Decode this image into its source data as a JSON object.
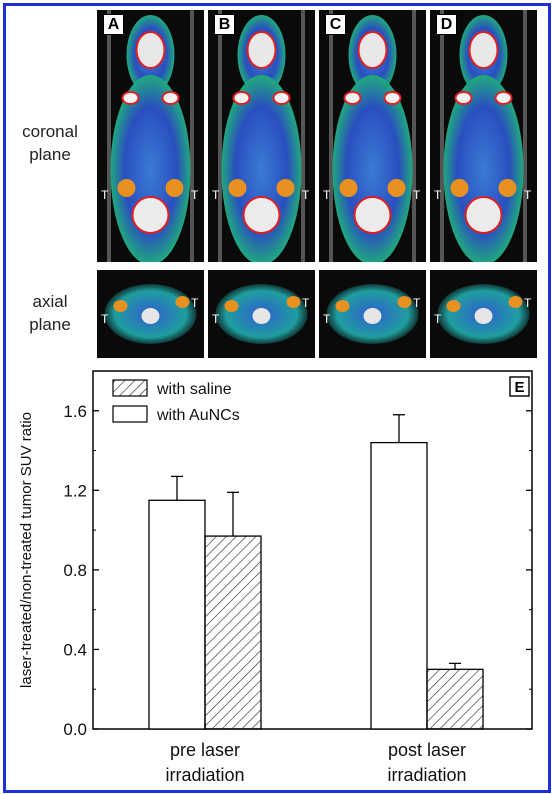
{
  "row_labels": {
    "coronal": "coronal\nplane",
    "axial": "axial\nplane"
  },
  "panels": [
    {
      "letter": "A",
      "coronal_t": [
        "T",
        "T"
      ],
      "axial_t": [
        "T",
        "T"
      ]
    },
    {
      "letter": "B",
      "coronal_t": [
        "T",
        "T"
      ],
      "axial_t": [
        "T",
        "T"
      ]
    },
    {
      "letter": "C",
      "coronal_t": [
        "T",
        "T"
      ],
      "axial_t": [
        "T",
        "T"
      ]
    },
    {
      "letter": "D",
      "coronal_t": [
        "T",
        "T"
      ],
      "axial_t": [
        "T",
        "T"
      ]
    }
  ],
  "chart_data": {
    "type": "bar",
    "panel_letter": "E",
    "categories": [
      "pre laser\nirradiation",
      "post laser\nirradiation"
    ],
    "series": [
      {
        "name": "with AuNCs",
        "values": [
          1.15,
          1.44
        ],
        "errors": [
          0.12,
          0.14
        ],
        "fill": "open"
      },
      {
        "name": "with saline",
        "values": [
          0.97,
          0.3
        ],
        "errors": [
          0.22,
          0.03
        ],
        "fill": "hatched"
      }
    ],
    "legend_order": [
      "with saline",
      "with AuNCs"
    ],
    "legend_position": "top-left",
    "ylabel": "laser-treated/non-treated tumor SUV ratio",
    "xlabel": "",
    "ylim": [
      0.0,
      1.8
    ],
    "yticks": [
      "0.0",
      "0.4",
      "0.8",
      "1.2",
      "1.6"
    ],
    "grid": false
  }
}
